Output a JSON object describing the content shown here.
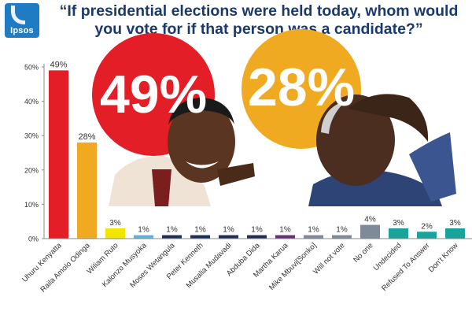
{
  "brand": {
    "logo_text": "Ipsos",
    "color": "#1f7cc3"
  },
  "title": "“If presidential elections were held today, whom would you vote for if that person was a candidate?”",
  "callouts": [
    {
      "label": "49%",
      "color": "#e31e26",
      "depicts": "photo-of-uhuru-kenyatta"
    },
    {
      "label": "28%",
      "color": "#efaa22",
      "depicts": "photo-of-raila-odinga"
    }
  ],
  "chart_data": {
    "type": "bar",
    "categories": [
      "Uhuru Kenyatta",
      "Raila Amolo Odinga",
      "Wiliam Ruto",
      "Kalonzo Musyoka",
      "Moses Wetangula",
      "Peter Kenneth",
      "Musalia Mudavadi",
      "Abduba Dida",
      "Martha Karua",
      "Mike Mbuvi[Sonko]",
      "Will not vote",
      "No one",
      "Undecided",
      "Refused To Answer",
      "Don't Know"
    ],
    "values": [
      49,
      28,
      3,
      1,
      1,
      1,
      1,
      1,
      1,
      1,
      1,
      4,
      3,
      2,
      3
    ],
    "data_labels": [
      "49%",
      "28%",
      "3%",
      "1%",
      "1%",
      "1%",
      "1%",
      "1%",
      "1%",
      "1%",
      "1%",
      "4%",
      "3%",
      "2%",
      "3%"
    ],
    "colors": [
      "#e31e26",
      "#efaa22",
      "#f2e600",
      "#5fb2d8",
      "#1b2f5c",
      "#1b2f5c",
      "#1b2f5c",
      "#1b2f5c",
      "#6b2c7a",
      "#7f8a99",
      "#7f8a99",
      "#7f8a99",
      "#1aa39b",
      "#1aa39b",
      "#1aa39b"
    ],
    "yticks": [
      0,
      10,
      20,
      30,
      40,
      50
    ],
    "ytick_labels": [
      "0%",
      "10%",
      "20%",
      "30%",
      "40%",
      "50%"
    ],
    "ylim": [
      0,
      50
    ],
    "grid": false,
    "title": "",
    "xlabel": "",
    "ylabel": ""
  }
}
